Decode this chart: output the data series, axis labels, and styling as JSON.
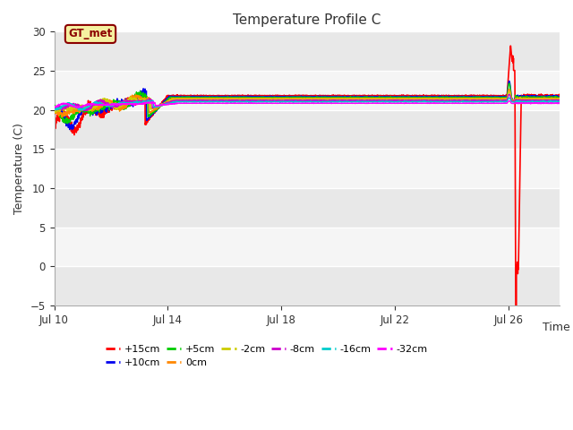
{
  "title": "Temperature Profile C",
  "xlabel": "Time",
  "ylabel": "Temperature (C)",
  "ylim": [
    -5,
    30
  ],
  "yticks": [
    -5,
    0,
    5,
    10,
    15,
    20,
    25,
    30
  ],
  "date_start": 10,
  "date_end": 27.8,
  "xtick_labels": [
    "Jul 10",
    "Jul 14",
    "Jul 18",
    "Jul 22",
    "Jul 26"
  ],
  "xtick_positions": [
    10,
    14,
    18,
    22,
    26
  ],
  "annotation_label": "GT_met",
  "annotation_box_color": "#f5f0a0",
  "annotation_border_color": "#8b0000",
  "series": [
    {
      "label": "+15cm",
      "color": "#ff0000",
      "flat": 21.8,
      "flat_noise": 0.04
    },
    {
      "label": "+10cm",
      "color": "#0000ee",
      "flat": 21.7,
      "flat_noise": 0.03
    },
    {
      "label": "+5cm",
      "color": "#00cc00",
      "flat": 21.6,
      "flat_noise": 0.03
    },
    {
      "label": "0cm",
      "color": "#ff8800",
      "flat": 21.45,
      "flat_noise": 0.02
    },
    {
      "label": "-2cm",
      "color": "#cccc00",
      "flat": 21.35,
      "flat_noise": 0.02
    },
    {
      "label": "-8cm",
      "color": "#cc00cc",
      "flat": 21.2,
      "flat_noise": 0.02
    },
    {
      "label": "-16cm",
      "color": "#00cccc",
      "flat": 21.05,
      "flat_noise": 0.02
    },
    {
      "label": "-32cm",
      "color": "#ff00ff",
      "flat": 20.85,
      "flat_noise": 0.01
    }
  ],
  "early_configs": [
    {
      "base": 21.5,
      "amp": 1.8,
      "start": 18.0
    },
    {
      "base": 21.2,
      "amp": 1.6,
      "start": 18.5
    },
    {
      "base": 21.0,
      "amp": 1.4,
      "start": 19.0
    },
    {
      "base": 20.9,
      "amp": 1.1,
      "start": 19.5
    },
    {
      "base": 20.7,
      "amp": 0.9,
      "start": 20.0
    },
    {
      "base": 20.5,
      "amp": 0.7,
      "start": 20.2
    },
    {
      "base": 20.3,
      "amp": 0.5,
      "start": 20.3
    },
    {
      "base": 20.0,
      "amp": 0.3,
      "start": 20.5
    }
  ],
  "spike_configs": [
    {
      "up": 6.5,
      "down": -22.0,
      "others_amp": 0.0
    },
    {
      "up": 2.0,
      "down": -1.5,
      "others_amp": 0.0
    },
    {
      "up": 1.8,
      "down": -1.8,
      "others_amp": 0.0
    },
    {
      "up": 1.2,
      "down": -0.8,
      "others_amp": 0.0
    },
    {
      "up": 1.0,
      "down": -0.5,
      "others_amp": 0.0
    },
    {
      "up": 0.8,
      "down": -0.3,
      "others_amp": 0.0
    },
    {
      "up": 0.5,
      "down": -0.2,
      "others_amp": 0.0
    },
    {
      "up": 0.3,
      "down": -0.1,
      "others_amp": 0.0
    }
  ]
}
